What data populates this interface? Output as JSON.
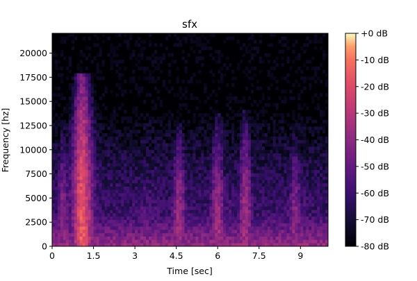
{
  "chart_data": {
    "type": "heatmap",
    "title": "sfx",
    "xlabel": "Time [sec]",
    "ylabel": "Frequency [hz]",
    "xlim": [
      0,
      10.0
    ],
    "ylim": [
      0,
      22050
    ],
    "x_ticks": [
      0,
      1.5,
      3,
      4.5,
      6,
      7.5,
      9
    ],
    "x_tick_labels": [
      "0",
      "1.5",
      "3",
      "4.5",
      "6",
      "7.5",
      "9"
    ],
    "y_ticks": [
      0,
      2500,
      5000,
      7500,
      10000,
      12500,
      15000,
      17500,
      20000
    ],
    "y_tick_labels": [
      "0",
      "2500",
      "5000",
      "7500",
      "10000",
      "12500",
      "15000",
      "17500",
      "20000"
    ],
    "colorbar": {
      "colormap": "magma",
      "range_db": [
        -80,
        0
      ],
      "ticks": [
        0,
        -10,
        -20,
        -30,
        -40,
        -50,
        -60,
        -70,
        -80
      ],
      "tick_labels": [
        "+0 dB",
        "-10 dB",
        "-20 dB",
        "-30 dB",
        "-40 dB",
        "-50 dB",
        "-60 dB",
        "-70 dB",
        "-80 dB"
      ]
    },
    "energy_features": [
      {
        "time_sec": 1.1,
        "max_freq_hz": 17000,
        "peak_db": -15
      },
      {
        "time_sec": 0.4,
        "max_freq_hz": 12000,
        "peak_db": -40
      },
      {
        "time_sec": 4.6,
        "max_freq_hz": 12000,
        "peak_db": -35
      },
      {
        "time_sec": 6.0,
        "max_freq_hz": 13000,
        "peak_db": -35
      },
      {
        "time_sec": 7.0,
        "max_freq_hz": 13500,
        "peak_db": -35
      },
      {
        "time_sec": 8.8,
        "max_freq_hz": 11500,
        "peak_db": -40
      }
    ],
    "grid": false,
    "legend": "colorbar-right"
  }
}
